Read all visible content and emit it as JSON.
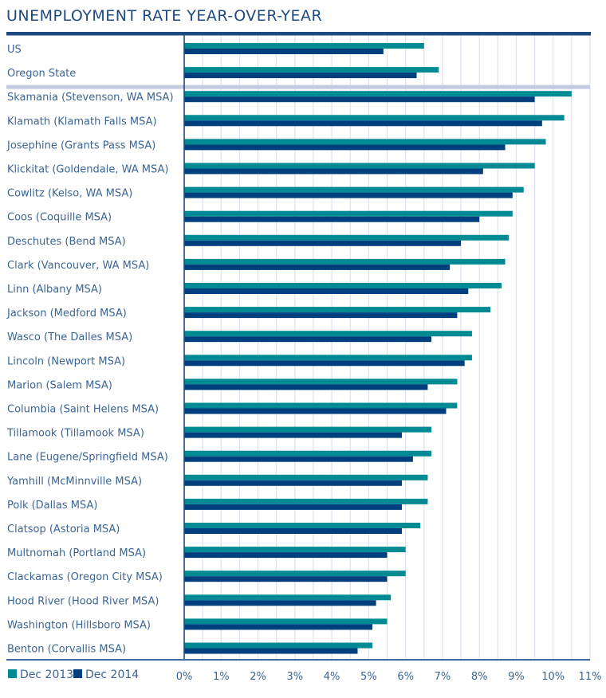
{
  "chart_data": {
    "type": "bar",
    "orientation": "horizontal",
    "title": "UNEMPLOYMENT RATE YEAR-OVER-YEAR",
    "xlabel": "",
    "ylabel": "",
    "xlim": [
      0,
      11
    ],
    "grid": true,
    "legend_position": "bottom-left",
    "x_ticks": [
      "0%",
      "1%",
      "2%",
      "3%",
      "4%",
      "5%",
      "6%",
      "7%",
      "8%",
      "9%",
      "10%",
      "11%"
    ],
    "categories": [
      "US",
      "Oregon State",
      "Skamania (Stevenson, WA MSA)",
      "Klamath (Klamath Falls MSA)",
      "Josephine (Grants Pass MSA)",
      "Klickitat (Goldendale, WA MSA)",
      "Cowlitz (Kelso, WA MSA)",
      "Coos (Coquille MSA)",
      "Deschutes (Bend MSA)",
      "Clark (Vancouver, WA MSA)",
      "Linn (Albany MSA)",
      "Jackson (Medford MSA)",
      "Wasco (The Dalles MSA)",
      "Lincoln (Newport MSA)",
      "Marion (Salem MSA)",
      "Columbia (Saint Helens MSA)",
      "Tillamook (Tillamook MSA)",
      "Lane (Eugene/Springfield MSA)",
      "Yamhill (McMinnville MSA)",
      "Polk (Dallas MSA)",
      "Clatsop (Astoria MSA)",
      "Multnomah (Portland MSA)",
      "Clackamas (Oregon City MSA)",
      "Hood River (Hood River MSA)",
      "Washington (Hillsboro MSA)",
      "Benton (Corvallis MSA)"
    ],
    "group_separator_after": 2,
    "series": [
      {
        "name": "Dec 2013",
        "color": "#008a94",
        "values": [
          6.5,
          6.9,
          10.5,
          10.3,
          9.8,
          9.5,
          9.2,
          8.9,
          8.8,
          8.7,
          8.6,
          8.3,
          7.8,
          7.8,
          7.4,
          7.4,
          6.7,
          6.7,
          6.6,
          6.6,
          6.4,
          6.0,
          6.0,
          5.6,
          5.5,
          5.1
        ]
      },
      {
        "name": "Dec 2014",
        "color": "#003f7d",
        "values": [
          5.4,
          6.3,
          9.5,
          9.7,
          8.7,
          8.1,
          8.9,
          8.0,
          7.5,
          7.2,
          7.7,
          7.4,
          6.7,
          7.6,
          6.6,
          7.1,
          5.9,
          6.2,
          5.9,
          5.9,
          5.9,
          5.5,
          5.5,
          5.2,
          5.1,
          4.7
        ]
      }
    ]
  },
  "colors": {
    "title": "#1f4a7d",
    "label": "#3b6594",
    "axis": "#1f4a7d",
    "grid": "#dde2ee",
    "separator": "#c4cbe0"
  }
}
